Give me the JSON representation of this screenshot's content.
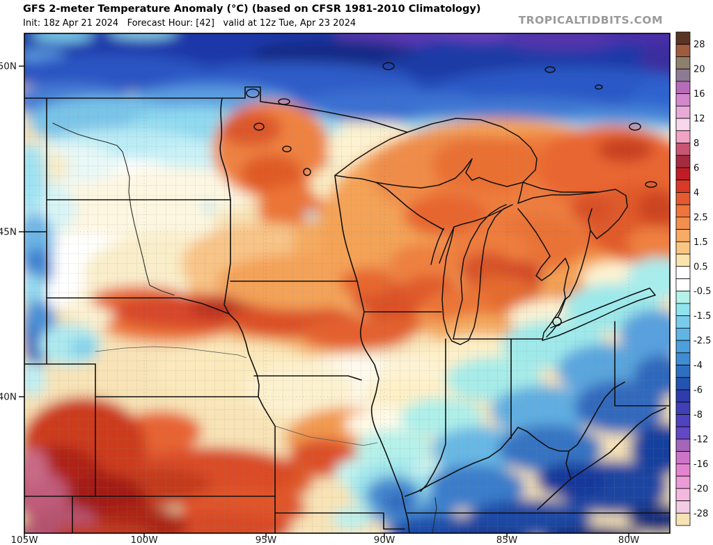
{
  "header": {
    "title": "GFS 2-meter Temperature Anomaly (°C) (based on CFSR 1981-2010 Climatology)",
    "subtitle": "Init: 18z Apr 21 2024   Forecast Hour: [42]   valid at 12z Tue, Apr 23 2024",
    "watermark": "TROPICALTIDBITS.COM",
    "model": "GFS",
    "variable": "2-meter Temperature Anomaly (°C)",
    "climatology": "CFSR 1981-2010",
    "init_time": "18z Apr 21 2024",
    "forecast_hour": "[42]",
    "valid_time": "12z Tue, Apr 23 2024"
  },
  "axes": {
    "lat_labels": [
      "50N",
      "45N",
      "40N"
    ],
    "lon_labels": [
      "105W",
      "100W",
      "95W",
      "90W",
      "85W",
      "80W"
    ]
  },
  "colorbar": {
    "units": "°C",
    "boundaries": [
      28,
      24,
      20,
      18,
      16,
      14,
      12,
      10,
      8,
      7,
      6,
      5,
      4,
      3,
      2.5,
      2,
      1.5,
      1,
      0.5,
      0,
      -0.5,
      -1,
      -1.5,
      -2,
      -2.5,
      -3,
      -4,
      -5,
      -6,
      -7,
      -8,
      -10,
      -12,
      -14,
      -16,
      -18,
      -20,
      -24,
      -28
    ],
    "tick_labels": [
      "28",
      "20",
      "16",
      "12",
      "8",
      "6",
      "4",
      "2.5",
      "1.5",
      "0.5",
      "-0.5",
      "-1.5",
      "-2.5",
      "-4",
      "-6",
      "-8",
      "-12",
      "-16",
      "-20",
      "-28"
    ],
    "segment_colors": [
      "#5a3423",
      "#a05a3e",
      "#8f7f6d",
      "#8d7b94",
      "#b76cb8",
      "#d488cc",
      "#eaaad9",
      "#f7d7ec",
      "#f0a3c4",
      "#c85672",
      "#a52c3e",
      "#c01d26",
      "#d93a27",
      "#e65931",
      "#ee753c",
      "#f28f4d",
      "#f7ab66",
      "#fac583",
      "#fbe3ab",
      "#ffffff",
      "#ffffff",
      "#b4f2ea",
      "#90e4ee",
      "#79cdeb",
      "#60b5e5",
      "#4da0dc",
      "#3f8cd3",
      "#2f6fc0",
      "#2254b0",
      "#2e3cac",
      "#3f3fb6",
      "#4f43be",
      "#6348c4",
      "#a565b8",
      "#cc74c8",
      "#e383cf",
      "#ec9bd8",
      "#f4b8e0",
      "#f2cbe4",
      "#f5e3b4"
    ]
  }
}
